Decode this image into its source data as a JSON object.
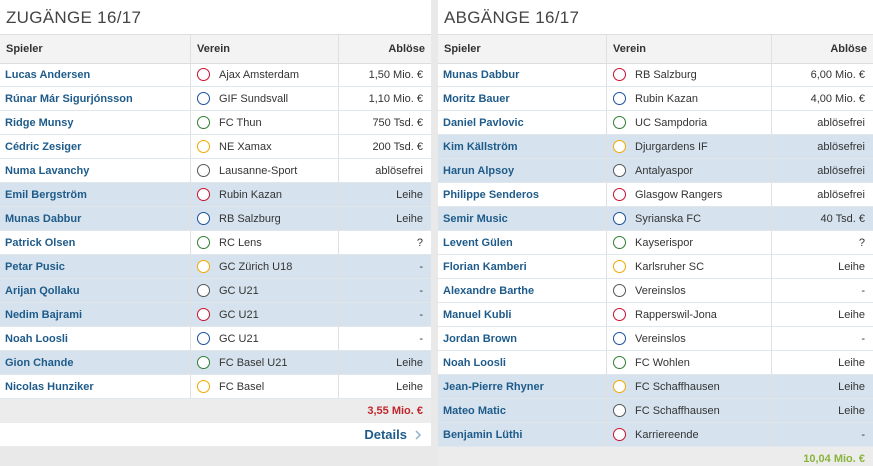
{
  "left": {
    "title": "ZUGÄNGE 16/17",
    "headers": [
      "Spieler",
      "Verein",
      "Ablöse"
    ],
    "rows": [
      {
        "player": "Lucas Andersen",
        "club": "Ajax Amsterdam",
        "fee": "1,50 Mio. €",
        "highlight": false
      },
      {
        "player": "Rúnar Már Sigurjónsson",
        "club": "GIF Sundsvall",
        "fee": "1,10 Mio. €",
        "highlight": false
      },
      {
        "player": "Ridge Munsy",
        "club": "FC Thun",
        "fee": "750 Tsd. €",
        "highlight": false
      },
      {
        "player": "Cédric Zesiger",
        "club": "NE Xamax",
        "fee": "200 Tsd. €",
        "highlight": false
      },
      {
        "player": "Numa Lavanchy",
        "club": "Lausanne-Sport",
        "fee": "ablösefrei",
        "highlight": false
      },
      {
        "player": "Emil Bergström",
        "club": "Rubin Kazan",
        "fee": "Leihe",
        "highlight": true
      },
      {
        "player": "Munas Dabbur",
        "club": "RB Salzburg",
        "fee": "Leihe",
        "highlight": true
      },
      {
        "player": "Patrick Olsen",
        "club": "RC Lens",
        "fee": "?",
        "highlight": false
      },
      {
        "player": "Petar Pusic",
        "club": "GC Zürich U18",
        "fee": "-",
        "highlight": true
      },
      {
        "player": "Arijan Qollaku",
        "club": "GC U21",
        "fee": "-",
        "highlight": true
      },
      {
        "player": "Nedim Bajrami",
        "club": "GC U21",
        "fee": "-",
        "highlight": true
      },
      {
        "player": "Noah Loosli",
        "club": "GC U21",
        "fee": "-",
        "highlight": false
      },
      {
        "player": "Gion Chande",
        "club": "FC Basel U21",
        "fee": "Leihe",
        "highlight": true
      },
      {
        "player": "Nicolas Hunziker",
        "club": "FC Basel",
        "fee": "Leihe",
        "highlight": false
      }
    ],
    "total": "3,55 Mio. €",
    "details": "Details"
  },
  "right": {
    "title": "ABGÄNGE 16/17",
    "headers": [
      "Spieler",
      "Verein",
      "Ablöse"
    ],
    "rows": [
      {
        "player": "Munas Dabbur",
        "club": "RB Salzburg",
        "fee": "6,00 Mio. €",
        "highlight": false
      },
      {
        "player": "Moritz Bauer",
        "club": "Rubin Kazan",
        "fee": "4,00 Mio. €",
        "highlight": false
      },
      {
        "player": "Daniel Pavlovic",
        "club": "UC Sampdoria",
        "fee": "ablösefrei",
        "highlight": false
      },
      {
        "player": "Kim Källström",
        "club": "Djurgardens IF",
        "fee": "ablösefrei",
        "highlight": true
      },
      {
        "player": "Harun Alpsoy",
        "club": "Antalyaspor",
        "fee": "ablösefrei",
        "highlight": true
      },
      {
        "player": "Philippe Senderos",
        "club": "Glasgow Rangers",
        "fee": "ablösefrei",
        "highlight": false
      },
      {
        "player": "Semir Music",
        "club": "Syrianska FC",
        "fee": "40 Tsd. €",
        "highlight": true
      },
      {
        "player": "Levent Gülen",
        "club": "Kayserispor",
        "fee": "?",
        "highlight": false
      },
      {
        "player": "Florian Kamberi",
        "club": "Karlsruher SC",
        "fee": "Leihe",
        "highlight": false
      },
      {
        "player": "Alexandre Barthe",
        "club": "Vereinslos",
        "fee": "-",
        "highlight": false
      },
      {
        "player": "Manuel Kubli",
        "club": "Rapperswil-Jona",
        "fee": "Leihe",
        "highlight": false
      },
      {
        "player": "Jordan Brown",
        "club": "Vereinslos",
        "fee": "-",
        "highlight": false
      },
      {
        "player": "Noah Loosli",
        "club": "FC Wohlen",
        "fee": "Leihe",
        "highlight": false
      },
      {
        "player": "Jean-Pierre Rhyner",
        "club": "FC Schaffhausen",
        "fee": "Leihe",
        "highlight": true
      },
      {
        "player": "Mateo Matic",
        "club": "FC Schaffhausen",
        "fee": "Leihe",
        "highlight": true
      },
      {
        "player": "Benjamin Lüthi",
        "club": "Karriereende",
        "fee": "-",
        "highlight": true
      }
    ],
    "total": "10,04 Mio. €"
  }
}
